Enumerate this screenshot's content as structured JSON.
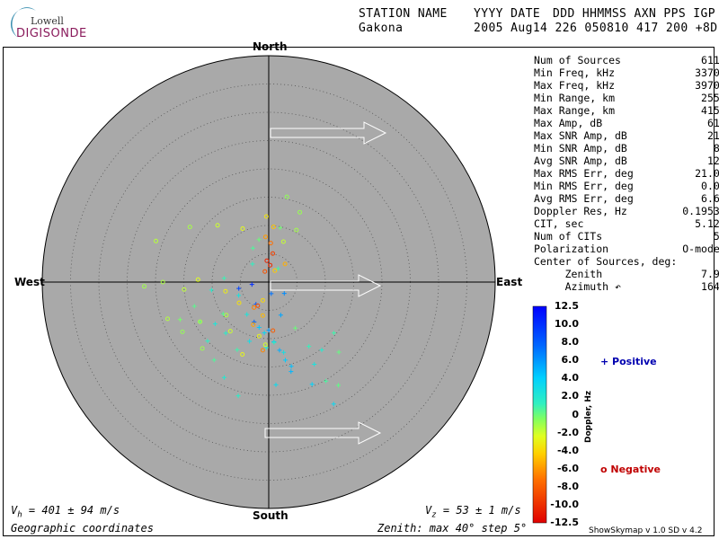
{
  "logo": {
    "top": "Lowell",
    "bottom": "DIGISONDE"
  },
  "header": {
    "row1": [
      "STATION NAME",
      "YYYY DATE",
      "DDD HHMMSS AXN PPS IGP"
    ],
    "row2": [
      "Gakona",
      "2005 Aug14 226 050810 417 200 +8D"
    ]
  },
  "directions": {
    "north": "North",
    "south": "South",
    "east": "East",
    "west": "West"
  },
  "stats": [
    {
      "label": "Num of Sources",
      "value": "611"
    },
    {
      "label": "Min Freq, kHz",
      "value": "3370"
    },
    {
      "label": "Max Freq, kHz",
      "value": "3970"
    },
    {
      "label": "Min Range, km",
      "value": "255"
    },
    {
      "label": "Max Range, km",
      "value": "415"
    },
    {
      "label": "Max Amp, dB",
      "value": "61"
    },
    {
      "label": "Max SNR Amp, dB",
      "value": "21"
    },
    {
      "label": "Min SNR Amp, dB",
      "value": "8"
    },
    {
      "label": "Avg SNR Amp, dB",
      "value": "12"
    },
    {
      "label": "Max RMS Err, deg",
      "value": "21.0"
    },
    {
      "label": "Min RMS Err, deg",
      "value": "0.0"
    },
    {
      "label": "Avg RMS Err, deg",
      "value": "6.6"
    },
    {
      "label": "Doppler Res, Hz",
      "value": "0.1953"
    },
    {
      "label": "CIT, sec",
      "value": "5.12"
    },
    {
      "label": "Num of CITs",
      "value": "5"
    },
    {
      "label": "Polarization",
      "value": "O-mode"
    },
    {
      "label": "Center of Sources, deg:",
      "value": ""
    },
    {
      "label": "     Zenith",
      "value": "7.9"
    },
    {
      "label": "     Azimuth ↶",
      "value": "164"
    }
  ],
  "colorbar": {
    "title": "Doppler, Hz",
    "ticks": [
      "12.5",
      "10.0",
      "8.0",
      "6.0",
      "4.0",
      "2.0",
      "0",
      "-2.0",
      "-4.0",
      "-6.0",
      "-8.0",
      "-10.0",
      "-12.5"
    ]
  },
  "legend": {
    "positive": "+ Positive",
    "negative": "o Negative"
  },
  "footer": {
    "vh": "401 ± 94 m/s",
    "vz": "53 ± 1 m/s",
    "coords": "Geographic coordinates",
    "zenith": "Zenith: max 40°  step 5°",
    "version": "ShowSkymap v 1.0   SD v 4.2"
  },
  "chart_data": {
    "type": "scatter",
    "projection": "polar-skymap",
    "zenith_max_deg": 40,
    "zenith_step_deg": 5,
    "grid": true,
    "colorbar_range_hz": [
      -12.5,
      12.5
    ],
    "velocity_arrows": 3,
    "center_of_sources": {
      "zenith_deg": 7.9,
      "azimuth_deg": 164
    },
    "series": [
      {
        "name": "Positive",
        "marker": "+",
        "points": [
          {
            "z": 3.0,
            "az": 262,
            "d": 11.0
          },
          {
            "z": 5.4,
            "az": 258,
            "d": 10.2
          },
          {
            "z": 4.5,
            "az": 210,
            "d": 9.5
          },
          {
            "z": 7.5,
            "az": 200,
            "d": 9.0
          },
          {
            "z": 2.1,
            "az": 168,
            "d": 8.4
          },
          {
            "z": 8.5,
            "az": 180,
            "d": 6.5
          },
          {
            "z": 10.6,
            "az": 175,
            "d": 5.0
          },
          {
            "z": 12.2,
            "az": 171,
            "d": 5.5
          },
          {
            "z": 14.1,
            "az": 168,
            "d": 4.2
          },
          {
            "z": 15.4,
            "az": 165,
            "d": 4.8
          },
          {
            "z": 16.3,
            "az": 166,
            "d": 5.2
          },
          {
            "z": 19.6,
            "az": 157,
            "d": 3.8
          },
          {
            "z": 9.0,
            "az": 185,
            "d": 3.5
          },
          {
            "z": 11.0,
            "az": 198,
            "d": 3.0
          },
          {
            "z": 6.9,
            "az": 214,
            "d": 2.5
          },
          {
            "z": 11.8,
            "az": 220,
            "d": 1.8
          },
          {
            "z": 13.2,
            "az": 205,
            "d": 1.2
          },
          {
            "z": 9.8,
            "az": 235,
            "d": 0.8
          },
          {
            "z": 14.0,
            "az": 240,
            "d": 0.5
          },
          {
            "z": 17.0,
            "az": 247,
            "d": 0.2
          },
          {
            "z": 4.3,
            "az": 318,
            "d": 1.5
          },
          {
            "z": 6.6,
            "az": 335,
            "d": 0.9
          },
          {
            "z": 7.7,
            "az": 347,
            "d": 0.4
          },
          {
            "z": 2.9,
            "az": 35,
            "d": 1.1
          },
          {
            "z": 9.8,
            "az": 12,
            "d": 0.3
          },
          {
            "z": 10.7,
            "az": 175,
            "d": 1.6
          },
          {
            "z": 11.6,
            "az": 182,
            "d": 2.2
          },
          {
            "z": 12.7,
            "az": 168,
            "d": 2.9
          },
          {
            "z": 18.2,
            "az": 176,
            "d": 3.2
          },
          {
            "z": 13.4,
            "az": 148,
            "d": 1.4
          },
          {
            "z": 15.2,
            "az": 142,
            "d": 2.0
          },
          {
            "z": 16.6,
            "az": 151,
            "d": 2.6
          },
          {
            "z": 20.2,
            "az": 150,
            "d": 1.0
          },
          {
            "z": 22.0,
            "az": 146,
            "d": 0.6
          },
          {
            "z": 24.4,
            "az": 152,
            "d": 3.4
          },
          {
            "z": 8.2,
            "az": 192,
            "d": 4.4
          },
          {
            "z": 6.2,
            "az": 160,
            "d": 6.0
          },
          {
            "z": 3.4,
            "az": 126,
            "d": 7.2
          },
          {
            "z": 5.8,
            "az": 246,
            "d": 2.7
          },
          {
            "z": 10.2,
            "az": 262,
            "d": 1.9
          },
          {
            "z": 7.9,
            "az": 275,
            "d": 1.3
          },
          {
            "z": 13.8,
            "az": 252,
            "d": 0.7
          },
          {
            "z": 12.0,
            "az": 232,
            "d": 2.4
          },
          {
            "z": 15.0,
            "az": 226,
            "d": 1.6
          },
          {
            "z": 16.8,
            "az": 215,
            "d": 0.9
          },
          {
            "z": 18.6,
            "az": 205,
            "d": 2.1
          },
          {
            "z": 20.8,
            "az": 195,
            "d": 1.7
          },
          {
            "z": 9.4,
            "az": 150,
            "d": 0.4
          },
          {
            "z": 17.5,
            "az": 135,
            "d": 0.5
          },
          {
            "z": 14.6,
            "az": 128,
            "d": 1.2
          }
        ]
      },
      {
        "name": "Negative",
        "marker": "o",
        "points": [
          {
            "z": 3.8,
            "az": 355,
            "d": -11.0
          },
          {
            "z": 3.0,
            "az": 5,
            "d": -10.5
          },
          {
            "z": 5.1,
            "az": 8,
            "d": -9.6
          },
          {
            "z": 2.0,
            "az": 340,
            "d": -8.8
          },
          {
            "z": 6.9,
            "az": 3,
            "d": -7.5
          },
          {
            "z": 8.0,
            "az": 356,
            "d": -6.2
          },
          {
            "z": 9.8,
            "az": 5,
            "d": -4.8
          },
          {
            "z": 11.6,
            "az": 358,
            "d": -3.6
          },
          {
            "z": 4.6,
            "az": 205,
            "d": -9.0
          },
          {
            "z": 5.2,
            "az": 210,
            "d": -7.0
          },
          {
            "z": 8.0,
            "az": 200,
            "d": -6.0
          },
          {
            "z": 6.0,
            "az": 190,
            "d": -5.2
          },
          {
            "z": 3.4,
            "az": 198,
            "d": -4.1
          },
          {
            "z": 9.7,
            "az": 190,
            "d": -3.0
          },
          {
            "z": 11.1,
            "az": 183,
            "d": -2.2
          },
          {
            "z": 4.3,
            "az": 42,
            "d": -5.5
          },
          {
            "z": 2.3,
            "az": 28,
            "d": -4.6
          },
          {
            "z": 7.8,
            "az": 258,
            "d": -3.3
          },
          {
            "z": 12.5,
            "az": 272,
            "d": -2.5
          },
          {
            "z": 15.0,
            "az": 265,
            "d": -1.6
          },
          {
            "z": 18.7,
            "az": 270,
            "d": -1.1
          },
          {
            "z": 22.0,
            "az": 268,
            "d": -0.8
          },
          {
            "z": 21.2,
            "az": 290,
            "d": -1.4
          },
          {
            "z": 17.0,
            "az": 305,
            "d": -1.0
          },
          {
            "z": 13.5,
            "az": 318,
            "d": -2.0
          },
          {
            "z": 10.5,
            "az": 334,
            "d": -2.7
          },
          {
            "z": 7.6,
            "az": 20,
            "d": -1.8
          },
          {
            "z": 10.4,
            "az": 28,
            "d": -0.9
          },
          {
            "z": 13.5,
            "az": 24,
            "d": -0.6
          },
          {
            "z": 15.4,
            "az": 12,
            "d": -0.4
          },
          {
            "z": 9.5,
            "az": 232,
            "d": -1.2
          },
          {
            "z": 14.0,
            "az": 240,
            "d": -0.9
          },
          {
            "z": 11.0,
            "az": 218,
            "d": -1.9
          },
          {
            "z": 6.4,
            "az": 235,
            "d": -3.8
          },
          {
            "z": 13.6,
            "az": 200,
            "d": -2.9
          },
          {
            "z": 16.6,
            "az": 225,
            "d": -0.7
          },
          {
            "z": 19.0,
            "az": 250,
            "d": -1.3
          },
          {
            "z": 17.6,
            "az": 240,
            "d": -0.5
          },
          {
            "z": 12.1,
            "az": 185,
            "d": -6.8
          },
          {
            "z": 8.6,
            "az": 175,
            "d": -8.3
          }
        ]
      }
    ]
  }
}
